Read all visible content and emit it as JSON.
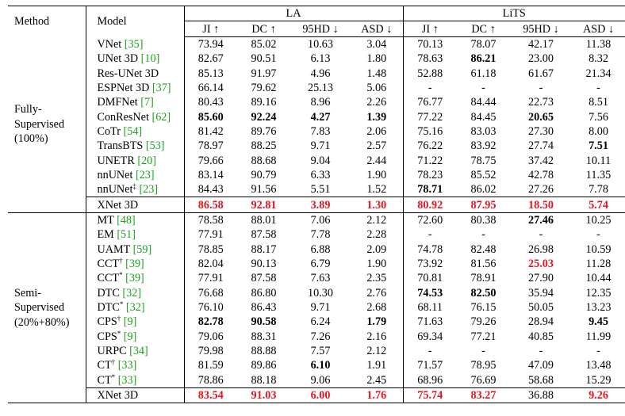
{
  "headers": {
    "method": "Method",
    "model": "Model",
    "la": "LA",
    "lits": "LiTS",
    "metrics": [
      "JI ↑",
      "DC ↑",
      "95HD ↓",
      "ASD ↓",
      "JI ↑",
      "DC ↑",
      "95HD ↓",
      "ASD ↓"
    ]
  },
  "groups": [
    {
      "method_lines": [
        "Fully-",
        "Supervised",
        "(100%)"
      ],
      "rows": [
        {
          "name": "VNet",
          "mark": "",
          "cite": "[35]",
          "cells": [
            "73.94",
            "85.02",
            "10.63",
            "3.04",
            "70.13",
            "78.07",
            "42.17",
            "11.38"
          ],
          "styles": [
            "",
            "",
            "",
            "",
            "",
            "",
            "",
            ""
          ]
        },
        {
          "name": "UNet 3D",
          "mark": "",
          "cite": "[10]",
          "cells": [
            "82.67",
            "90.51",
            "6.13",
            "1.80",
            "78.63",
            "86.21",
            "23.00",
            "8.32"
          ],
          "styles": [
            "",
            "",
            "",
            "",
            "",
            "b",
            "",
            ""
          ]
        },
        {
          "name": "Res-UNet 3D",
          "mark": "",
          "cite": "",
          "cells": [
            "85.13",
            "91.97",
            "4.96",
            "1.48",
            "52.88",
            "61.18",
            "61.67",
            "21.34"
          ],
          "styles": [
            "",
            "",
            "",
            "",
            "",
            "",
            "",
            ""
          ]
        },
        {
          "name": "ESPNet 3D",
          "mark": "",
          "cite": "[37]",
          "cells": [
            "66.14",
            "79.62",
            "25.13",
            "5.06",
            "-",
            "-",
            "-",
            "-"
          ],
          "styles": [
            "",
            "",
            "",
            "",
            "",
            "",
            "",
            ""
          ]
        },
        {
          "name": "DMFNet",
          "mark": "",
          "cite": "[7]",
          "cells": [
            "80.43",
            "89.16",
            "8.96",
            "2.26",
            "76.77",
            "84.44",
            "22.73",
            "8.51"
          ],
          "styles": [
            "",
            "",
            "",
            "",
            "",
            "",
            "",
            ""
          ]
        },
        {
          "name": "ConResNet",
          "mark": "",
          "cite": "[62]",
          "cells": [
            "85.60",
            "92.24",
            "4.27",
            "1.39",
            "77.22",
            "84.45",
            "20.65",
            "7.56"
          ],
          "styles": [
            "b",
            "b",
            "b",
            "b",
            "",
            "",
            "b",
            ""
          ]
        },
        {
          "name": "CoTr",
          "mark": "",
          "cite": "[54]",
          "cells": [
            "81.42",
            "89.76",
            "7.83",
            "2.06",
            "75.16",
            "83.03",
            "27.30",
            "8.00"
          ],
          "styles": [
            "",
            "",
            "",
            "",
            "",
            "",
            "",
            ""
          ]
        },
        {
          "name": "TransBTS",
          "mark": "",
          "cite": "[53]",
          "cells": [
            "78.97",
            "88.25",
            "9.71",
            "2.57",
            "76.22",
            "83.92",
            "27.74",
            "7.51"
          ],
          "styles": [
            "",
            "",
            "",
            "",
            "",
            "",
            "",
            "b"
          ]
        },
        {
          "name": "UNETR",
          "mark": "",
          "cite": "[20]",
          "cells": [
            "79.66",
            "88.68",
            "9.04",
            "2.44",
            "71.22",
            "78.75",
            "37.42",
            "10.11"
          ],
          "styles": [
            "",
            "",
            "",
            "",
            "",
            "",
            "",
            ""
          ]
        },
        {
          "name": "nnUNet",
          "mark": "",
          "cite": "[23]",
          "cells": [
            "83.14",
            "90.79",
            "6.33",
            "1.90",
            "78.23",
            "85.52",
            "42.78",
            "11.35"
          ],
          "styles": [
            "",
            "",
            "",
            "",
            "",
            "",
            "",
            ""
          ]
        },
        {
          "name": "nnUNet",
          "mark": "‡",
          "cite": "[23]",
          "cells": [
            "84.43",
            "91.56",
            "5.51",
            "1.52",
            "78.71",
            "86.02",
            "27.26",
            "7.78"
          ],
          "styles": [
            "",
            "",
            "",
            "",
            "b",
            "",
            "",
            ""
          ]
        }
      ],
      "final": {
        "name": "XNet 3D",
        "cells": [
          "86.58",
          "92.81",
          "3.89",
          "1.30",
          "80.92",
          "87.95",
          "18.50",
          "5.74"
        ],
        "styles": [
          "red",
          "red",
          "red",
          "red",
          "red",
          "red",
          "red",
          "red"
        ]
      }
    },
    {
      "method_lines": [
        "Semi-",
        "Supervised",
        "(20%+80%)"
      ],
      "rows": [
        {
          "name": "MT",
          "mark": "",
          "cite": "[48]",
          "cells": [
            "78.58",
            "88.01",
            "7.06",
            "2.12",
            "72.60",
            "80.38",
            "27.46",
            "10.25"
          ],
          "styles": [
            "",
            "",
            "",
            "",
            "",
            "",
            "b",
            ""
          ]
        },
        {
          "name": "EM",
          "mark": "",
          "cite": "[51]",
          "cells": [
            "77.91",
            "87.58",
            "7.78",
            "2.28",
            "-",
            "-",
            "-",
            "-"
          ],
          "styles": [
            "",
            "",
            "",
            "",
            "",
            "",
            "",
            ""
          ]
        },
        {
          "name": "UAMT",
          "mark": "",
          "cite": "[59]",
          "cells": [
            "78.85",
            "88.17",
            "6.88",
            "2.09",
            "74.78",
            "82.48",
            "26.98",
            "10.59"
          ],
          "styles": [
            "",
            "",
            "",
            "",
            "",
            "",
            "",
            ""
          ]
        },
        {
          "name": "CCT",
          "mark": "†",
          "cite": "[39]",
          "cells": [
            "82.04",
            "90.13",
            "6.79",
            "1.90",
            "73.92",
            "81.56",
            "25.03",
            "11.28"
          ],
          "styles": [
            "",
            "",
            "",
            "",
            "",
            "",
            "red",
            ""
          ]
        },
        {
          "name": "CCT",
          "mark": "*",
          "cite": "[39]",
          "cells": [
            "77.91",
            "87.58",
            "7.63",
            "2.35",
            "70.81",
            "78.91",
            "27.90",
            "10.44"
          ],
          "styles": [
            "",
            "",
            "",
            "",
            "",
            "",
            "",
            ""
          ]
        },
        {
          "name": "DTC",
          "mark": "",
          "cite": "[32]",
          "cells": [
            "76.68",
            "86.80",
            "10.30",
            "2.76",
            "74.53",
            "82.50",
            "35.94",
            "12.35"
          ],
          "styles": [
            "",
            "",
            "",
            "",
            "b",
            "b",
            "",
            ""
          ]
        },
        {
          "name": "DTC",
          "mark": "*",
          "cite": "[32]",
          "cells": [
            "76.10",
            "86.43",
            "9.71",
            "2.68",
            "68.11",
            "76.15",
            "50.05",
            "13.23"
          ],
          "styles": [
            "",
            "",
            "",
            "",
            "",
            "",
            "",
            ""
          ]
        },
        {
          "name": "CPS",
          "mark": "†",
          "cite": "[9]",
          "cells": [
            "82.78",
            "90.58",
            "6.24",
            "1.79",
            "71.63",
            "79.26",
            "28.94",
            "9.45"
          ],
          "styles": [
            "b",
            "b",
            "",
            "b",
            "",
            "",
            "",
            "b"
          ]
        },
        {
          "name": "CPS",
          "mark": "*",
          "cite": "[9]",
          "cells": [
            "79.06",
            "88.31",
            "7.26",
            "2.16",
            "69.34",
            "77.21",
            "40.85",
            "11.99"
          ],
          "styles": [
            "",
            "",
            "",
            "",
            "",
            "",
            "",
            ""
          ]
        },
        {
          "name": "URPC",
          "mark": "",
          "cite": "[34]",
          "cells": [
            "79.98",
            "88.88",
            "7.57",
            "2.12",
            "-",
            "-",
            "-",
            "-"
          ],
          "styles": [
            "",
            "",
            "",
            "",
            "",
            "",
            "",
            ""
          ]
        },
        {
          "name": "CT",
          "mark": "†",
          "cite": "[33]",
          "cells": [
            "81.59",
            "89.86",
            "6.10",
            "1.91",
            "71.57",
            "78.95",
            "47.09",
            "13.48"
          ],
          "styles": [
            "",
            "",
            "b",
            "",
            "",
            "",
            "",
            ""
          ]
        },
        {
          "name": "CT",
          "mark": "*",
          "cite": "[33]",
          "cells": [
            "78.86",
            "88.18",
            "9.06",
            "2.45",
            "68.96",
            "76.69",
            "58.68",
            "15.29"
          ],
          "styles": [
            "",
            "",
            "",
            "",
            "",
            "",
            "",
            ""
          ]
        }
      ],
      "final": {
        "name": "XNet 3D",
        "cells": [
          "83.54",
          "91.03",
          "6.00",
          "1.76",
          "75.74",
          "83.27",
          "36.88",
          "9.26"
        ],
        "styles": [
          "red",
          "red",
          "red",
          "red",
          "red",
          "red",
          "",
          "red"
        ]
      }
    }
  ]
}
